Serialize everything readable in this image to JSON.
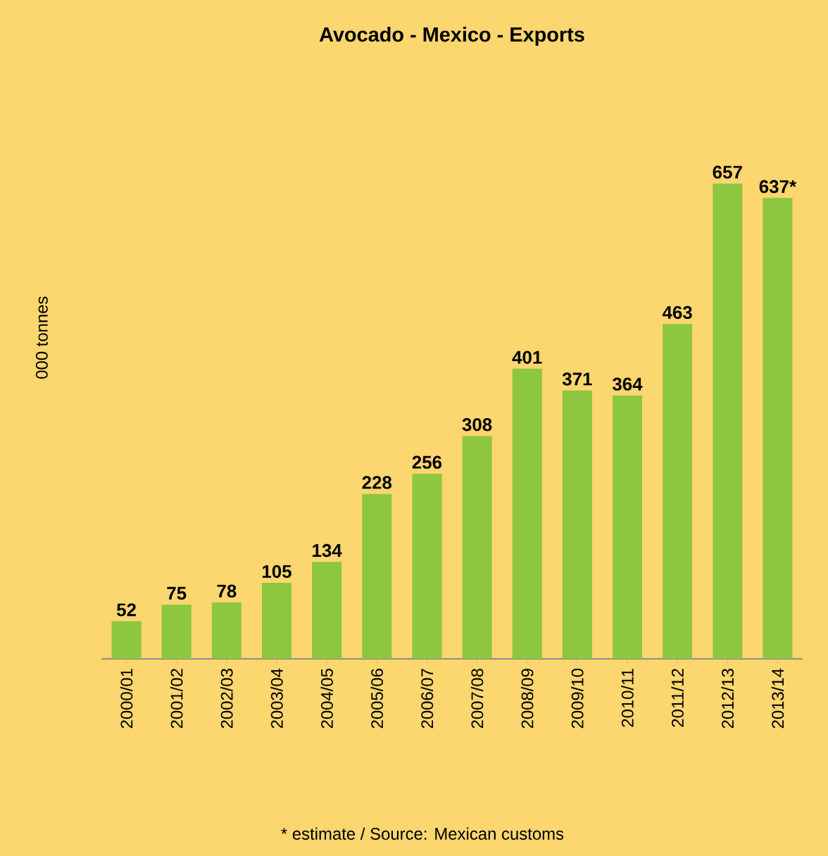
{
  "chart_data": {
    "type": "bar",
    "title": "Avocado - Mexico - Exports",
    "ylabel": "000 tonnes",
    "categories": [
      "2000/01",
      "2001/02",
      "2002/03",
      "2003/04",
      "2004/05",
      "2005/06",
      "2006/07",
      "2007/08",
      "2008/09",
      "2009/10",
      "2010/11",
      "2011/12",
      "2012/13",
      "2013/14"
    ],
    "values": [
      52,
      75,
      78,
      105,
      134,
      228,
      256,
      308,
      401,
      371,
      364,
      463,
      657,
      637
    ],
    "value_labels": [
      "52",
      "75",
      "78",
      "105",
      "134",
      "228",
      "256",
      "308",
      "401",
      "371",
      "364",
      "463",
      "657",
      "637*"
    ],
    "color": "#8dc63f",
    "annotations": [
      "* estimate / Source: Mexican customs"
    ]
  }
}
